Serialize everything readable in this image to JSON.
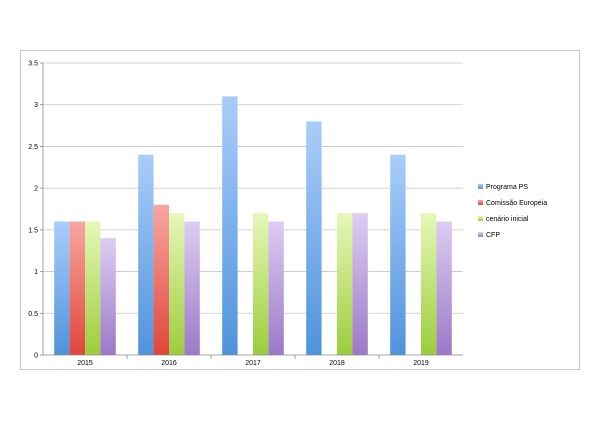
{
  "chart_data": {
    "type": "bar",
    "categories": [
      "2015",
      "2016",
      "2017",
      "2018",
      "2019"
    ],
    "series": [
      {
        "name": "Programa PS",
        "values": [
          1.6,
          2.4,
          3.1,
          2.8,
          2.4
        ],
        "color_top": "#a9cdfa",
        "color_bottom": "#4f93dc"
      },
      {
        "name": "Comissão Europeia",
        "values": [
          1.6,
          1.8,
          null,
          null,
          null
        ],
        "color_top": "#f8a6a0",
        "color_bottom": "#e0463b"
      },
      {
        "name": "cenário inicial",
        "values": [
          1.6,
          1.7,
          1.7,
          1.7,
          1.7
        ],
        "color_top": "#e6f8b8",
        "color_bottom": "#9ccd3c"
      },
      {
        "name": "CFP",
        "values": [
          1.4,
          1.6,
          1.6,
          1.7,
          1.6
        ],
        "color_top": "#ddcdf2",
        "color_bottom": "#9b79c7"
      }
    ],
    "yticks": [
      "0",
      "0.5",
      "1",
      "1.5",
      "2",
      "2.5",
      "3",
      "3.5"
    ],
    "ylim": [
      0,
      3.5
    ],
    "grid": true,
    "legend_position": "right"
  }
}
